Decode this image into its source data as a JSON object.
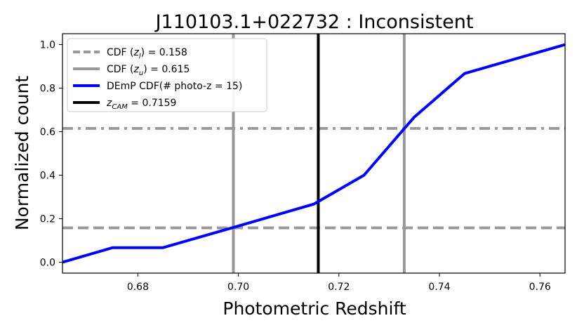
{
  "chart_data": {
    "type": "line",
    "title": "J110103.1+022732 : Inconsistent",
    "xlabel": "Photometric Redshift",
    "ylabel": "Normalized count",
    "xlim": [
      0.665,
      0.765
    ],
    "ylim": [
      -0.05,
      1.05
    ],
    "xticks": [
      0.68,
      0.7,
      0.72,
      0.74,
      0.76
    ],
    "xtick_labels": [
      "0.68",
      "0.70",
      "0.72",
      "0.74",
      "0.76"
    ],
    "yticks": [
      0.0,
      0.2,
      0.4,
      0.6,
      0.8,
      1.0
    ],
    "ytick_labels": [
      "0.0",
      "0.2",
      "0.4",
      "0.6",
      "0.8",
      "1.0"
    ],
    "grid": false,
    "legend_position": "top-left",
    "series": [
      {
        "name": "DEmP CDF(# photo-z = 15)",
        "color": "#0000ff",
        "style": "solid",
        "x": [
          0.665,
          0.675,
          0.685,
          0.699,
          0.715,
          0.725,
          0.735,
          0.745,
          0.765
        ],
        "y": [
          0.0,
          0.067,
          0.067,
          0.16,
          0.267,
          0.4,
          0.667,
          0.867,
          1.0
        ]
      }
    ],
    "hlines": [
      {
        "y": 0.158,
        "style": "dashed",
        "color": "#999999"
      },
      {
        "y": 0.615,
        "style": "dashdot",
        "color": "#999999"
      }
    ],
    "vlines": [
      {
        "x": 0.699,
        "style": "solid",
        "color": "#999999"
      },
      {
        "x": 0.733,
        "style": "solid",
        "color": "#999999"
      },
      {
        "x": 0.7159,
        "style": "solid",
        "color": "#000000"
      }
    ],
    "legend": [
      {
        "pre": "CDF (",
        "var": "z",
        "sub": "l",
        "post": ") = 0.158",
        "style": "dashed",
        "color": "#999999"
      },
      {
        "pre": "CDF (",
        "var": "z",
        "sub": "u",
        "post": ") = 0.615",
        "style": "solid",
        "color": "#999999"
      },
      {
        "pre": "DEmP CDF(# photo-z = 15)",
        "var": "",
        "sub": "",
        "post": "",
        "style": "solid",
        "color": "#0000ff"
      },
      {
        "pre": "",
        "var": "z",
        "sub": "CAM",
        "post": " = 0.7159",
        "style": "solid",
        "color": "#000000"
      }
    ]
  }
}
